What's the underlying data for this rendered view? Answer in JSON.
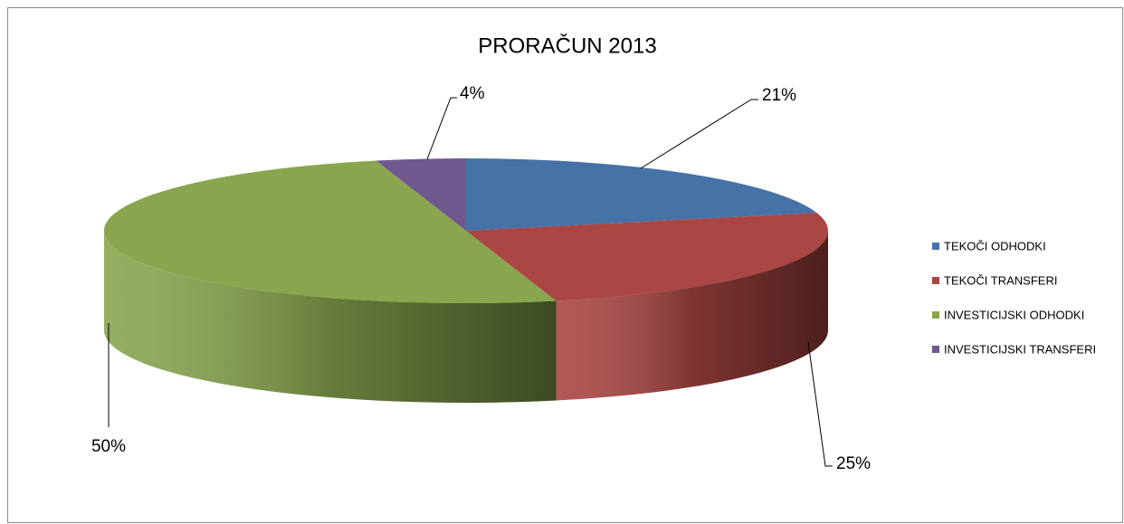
{
  "chart_data": {
    "type": "pie",
    "title": "PRORAČUN 2013",
    "categories": [
      "TEKOČI ODHODKI",
      "TEKOČI TRANSFERI",
      "INVESTICIJSKI ODHODKI",
      "INVESTICIJSKI TRANSFERI"
    ],
    "values": [
      21,
      25,
      50,
      4
    ],
    "value_labels": [
      "21%",
      "25%",
      "50%",
      "4%"
    ],
    "colors": [
      "#4572a7",
      "#aa4643",
      "#89a54e",
      "#71588f"
    ],
    "legend": "right"
  }
}
